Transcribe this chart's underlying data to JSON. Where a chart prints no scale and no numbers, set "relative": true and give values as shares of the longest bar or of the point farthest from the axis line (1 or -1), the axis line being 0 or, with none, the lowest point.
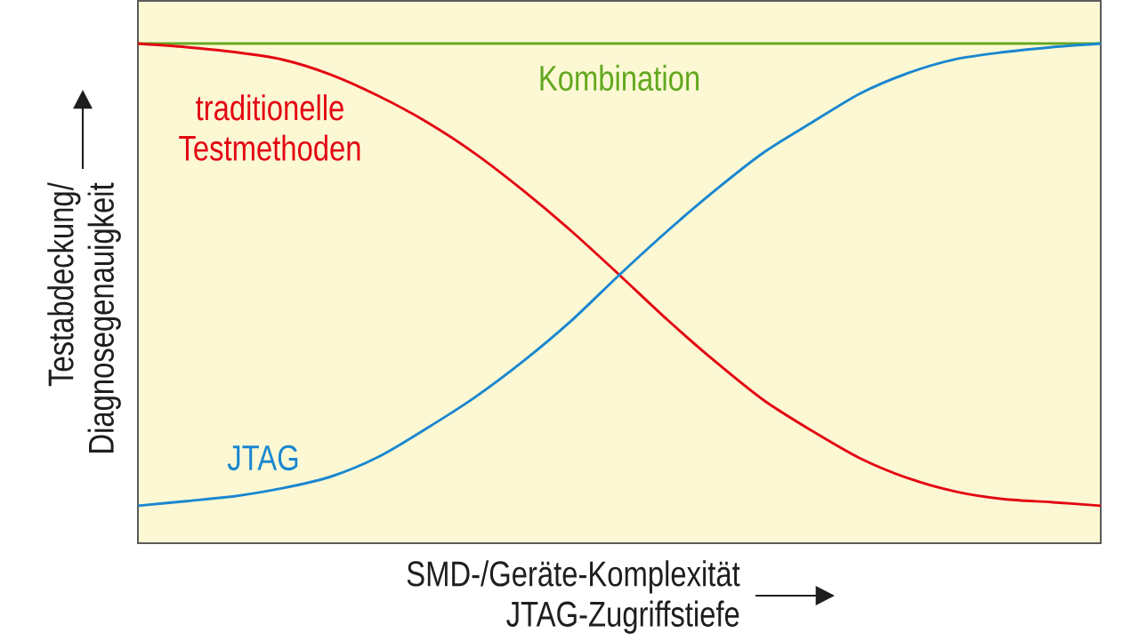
{
  "chart_data": {
    "type": "line",
    "relative": true,
    "xlabel": "SMD-/Geräte-Komplexität JTAG-Zugriffstiefe",
    "ylabel": "Testabdeckung/ Diagnosegenauigkeit",
    "categories": [
      null,
      null,
      null,
      null,
      null,
      null,
      null,
      null,
      null,
      null,
      null,
      null,
      null,
      null,
      null,
      null,
      null,
      null,
      null,
      null,
      null
    ],
    "series": [
      {
        "name": "Kombination",
        "color": "#62a81e",
        "values": [
          1,
          1,
          1,
          1,
          1,
          1,
          1,
          1,
          1,
          1,
          1,
          1,
          1,
          1,
          1,
          1,
          1,
          1,
          1,
          1,
          1
        ]
      },
      {
        "name": "traditionelle Testmethoden",
        "color": "#e30613",
        "values": [
          1.0,
          0.993,
          0.983,
          0.968,
          0.938,
          0.895,
          0.843,
          0.78,
          0.706,
          0.625,
          0.537,
          0.447,
          0.363,
          0.286,
          0.225,
          0.17,
          0.13,
          0.103,
          0.088,
          0.082,
          0.075
        ]
      },
      {
        "name": "JTAG",
        "color": "#1a87d0",
        "values": [
          0.075,
          0.084,
          0.094,
          0.11,
          0.133,
          0.173,
          0.23,
          0.292,
          0.364,
          0.445,
          0.537,
          0.625,
          0.707,
          0.782,
          0.842,
          0.9,
          0.941,
          0.969,
          0.983,
          0.993,
          1.0
        ]
      }
    ]
  }
}
